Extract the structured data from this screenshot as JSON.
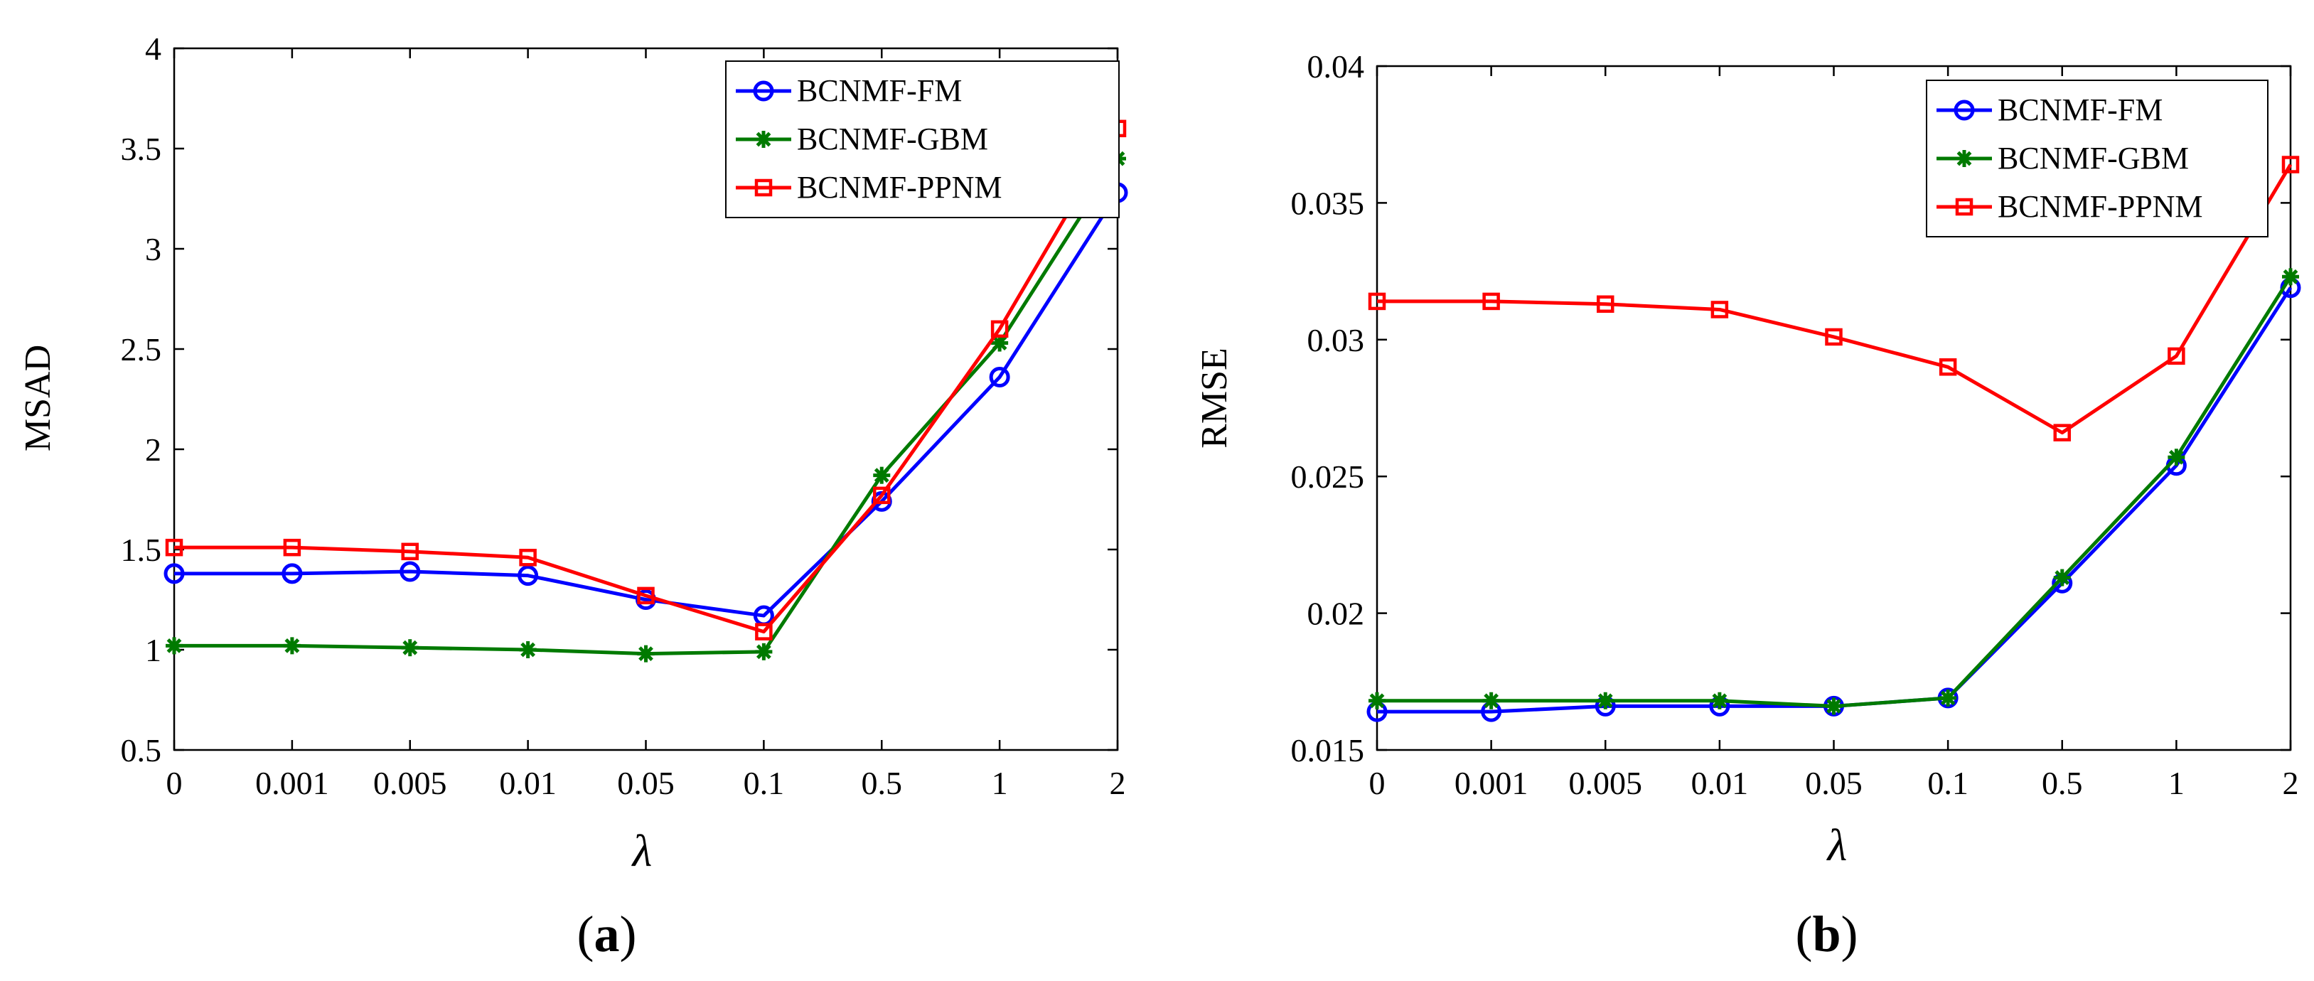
{
  "chart_data": [
    {
      "type": "line",
      "panel_label": "a",
      "title": "",
      "xlabel": "λ",
      "ylabel": "MSAD",
      "categories": [
        "0",
        "0.001",
        "0.005",
        "0.01",
        "0.05",
        "0.1",
        "0.5",
        "1",
        "2"
      ],
      "ylim": [
        0.5,
        4
      ],
      "yticks": [
        "0.5",
        "1",
        "1.5",
        "2",
        "2.5",
        "3",
        "3.5",
        "4"
      ],
      "legend_position": "top-right",
      "series": [
        {
          "name": "BCNMF-FM",
          "color": "#0000ff",
          "marker": "circle",
          "values": [
            1.38,
            1.38,
            1.39,
            1.37,
            1.25,
            1.17,
            1.74,
            2.36,
            3.28
          ]
        },
        {
          "name": "BCNMF-GBM",
          "color": "#007a00",
          "marker": "star",
          "values": [
            1.02,
            1.02,
            1.01,
            1.0,
            0.98,
            0.99,
            1.87,
            2.53,
            3.45
          ]
        },
        {
          "name": "BCNMF-PPNM",
          "color": "#ff0000",
          "marker": "square",
          "values": [
            1.51,
            1.51,
            1.49,
            1.46,
            1.27,
            1.09,
            1.77,
            2.6,
            3.6
          ]
        }
      ]
    },
    {
      "type": "line",
      "panel_label": "b",
      "title": "",
      "xlabel": "λ",
      "ylabel": "RMSE",
      "categories": [
        "0",
        "0.001",
        "0.005",
        "0.01",
        "0.05",
        "0.1",
        "0.5",
        "1",
        "2"
      ],
      "ylim": [
        0.015,
        0.04
      ],
      "yticks": [
        "0.015",
        "0.02",
        "0.025",
        "0.03",
        "0.035",
        "0.04"
      ],
      "legend_position": "top-right",
      "series": [
        {
          "name": "BCNMF-FM",
          "color": "#0000ff",
          "marker": "circle",
          "values": [
            0.0164,
            0.0164,
            0.0166,
            0.0166,
            0.0166,
            0.0169,
            0.0211,
            0.0254,
            0.0319
          ]
        },
        {
          "name": "BCNMF-GBM",
          "color": "#007a00",
          "marker": "star",
          "values": [
            0.0168,
            0.0168,
            0.0168,
            0.0168,
            0.0166,
            0.0169,
            0.0213,
            0.0257,
            0.0323
          ]
        },
        {
          "name": "BCNMF-PPNM",
          "color": "#ff0000",
          "marker": "square",
          "values": [
            0.0314,
            0.0314,
            0.0313,
            0.0311,
            0.0301,
            0.029,
            0.0266,
            0.0294,
            0.0364
          ]
        }
      ]
    }
  ]
}
